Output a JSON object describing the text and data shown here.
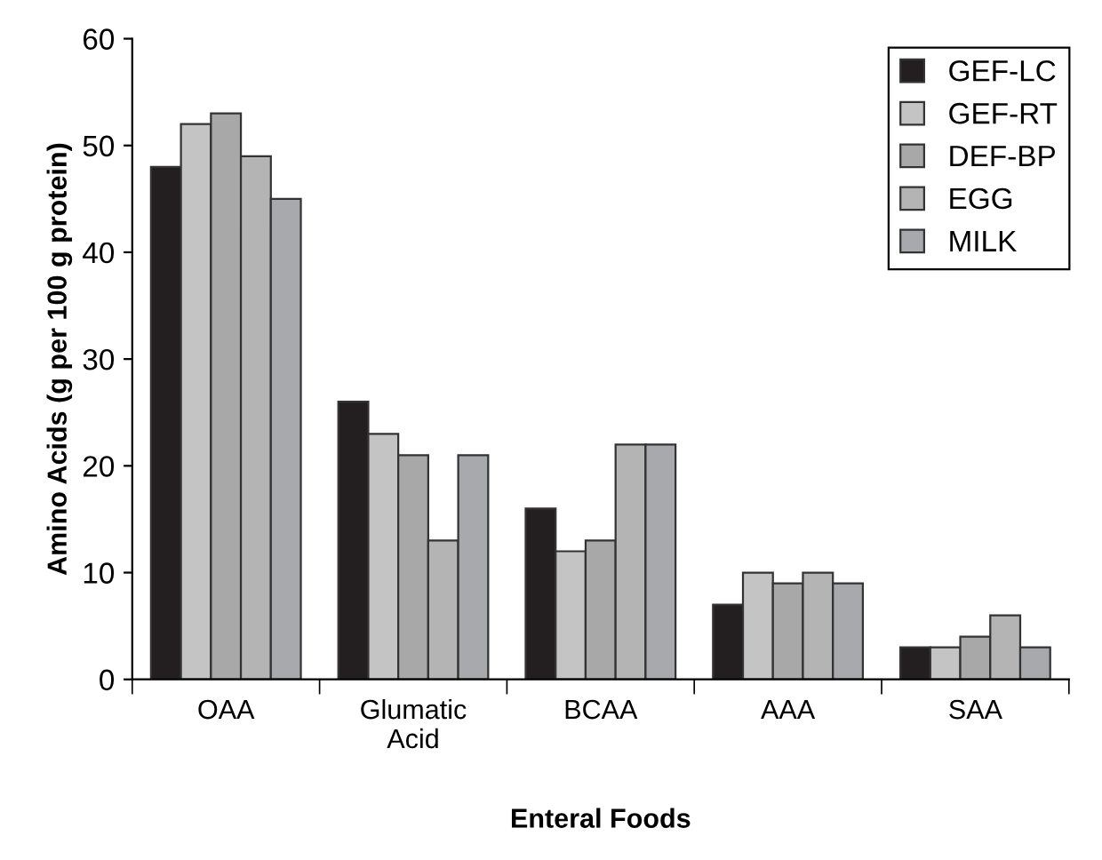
{
  "chart_data": {
    "type": "bar",
    "xlabel": "Enteral Foods",
    "ylabel": "Amino Acids (g per 100 g protein)",
    "categories": [
      "OAA",
      "Glumatic\nAcid",
      "BCAA",
      "AAA",
      "SAA"
    ],
    "series": [
      {
        "name": "GEF-LC",
        "color": "#231f20",
        "values": [
          48,
          26,
          16,
          7,
          3
        ]
      },
      {
        "name": "GEF-RT",
        "color": "#c4c4c4",
        "values": [
          52,
          23,
          12,
          10,
          3
        ]
      },
      {
        "name": "DEF-BP",
        "color": "#a8a8a8",
        "values": [
          53,
          21,
          13,
          9,
          4
        ]
      },
      {
        "name": "EGG",
        "color": "#b4b4b4",
        "values": [
          49,
          13,
          22,
          10,
          6
        ]
      },
      {
        "name": "MILK",
        "color": "#a7a9ac",
        "values": [
          45,
          21,
          22,
          9,
          3
        ]
      }
    ],
    "ylim": [
      0,
      60
    ],
    "yticks": [
      0,
      10,
      20,
      30,
      40,
      50,
      60
    ],
    "legend": "top right",
    "grid": false
  }
}
